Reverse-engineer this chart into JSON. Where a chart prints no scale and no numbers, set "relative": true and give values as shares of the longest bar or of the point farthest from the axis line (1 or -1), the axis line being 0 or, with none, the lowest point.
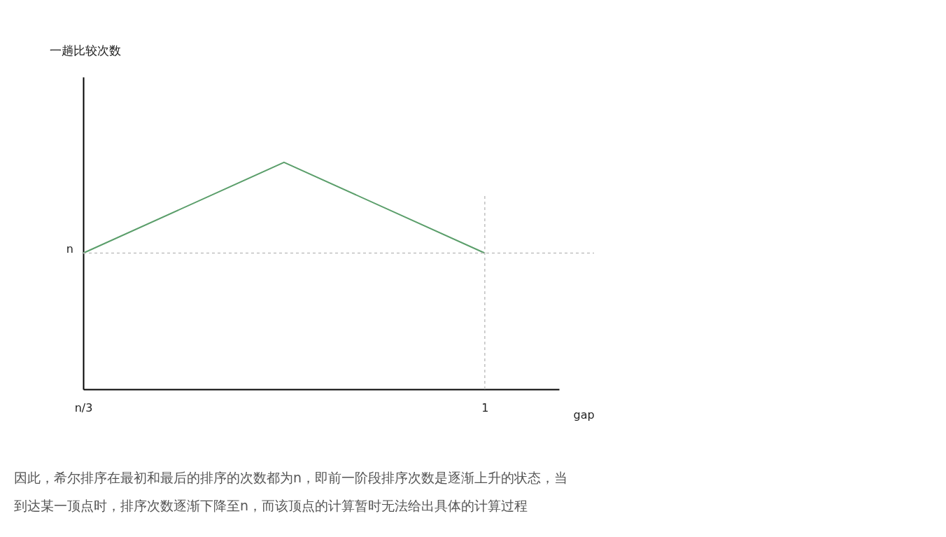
{
  "chart_data": {
    "type": "line",
    "relative": true,
    "xlabel": "gap",
    "categories": [
      "n/3",
      null,
      "1"
    ],
    "series": [
      {
        "color": "#5a9e6a",
        "values": [
          0.6,
          1,
          0.6
        ]
      }
    ],
    "ref_lines": [
      {
        "axis": "y",
        "value": 0.6,
        "label": "n",
        "color": "#c0c0c0",
        "line_style": "dashed"
      },
      {
        "axis": "x",
        "value": "1",
        "color": "#c0c0c0",
        "line_style": "dashed"
      }
    ],
    "grid": false,
    "marker": "none",
    "line_style": "solid",
    "annotations": [
      "一趟比较次数",
      "因此，希尔排序在最初和最后的排序的次数都为n，即前一阶段排序次数是逐渐上升的状态，当到达某一顶点时，排序次数逐渐下降至n，而该顶点的计算暂时无法给出具体的计算过程"
    ]
  }
}
